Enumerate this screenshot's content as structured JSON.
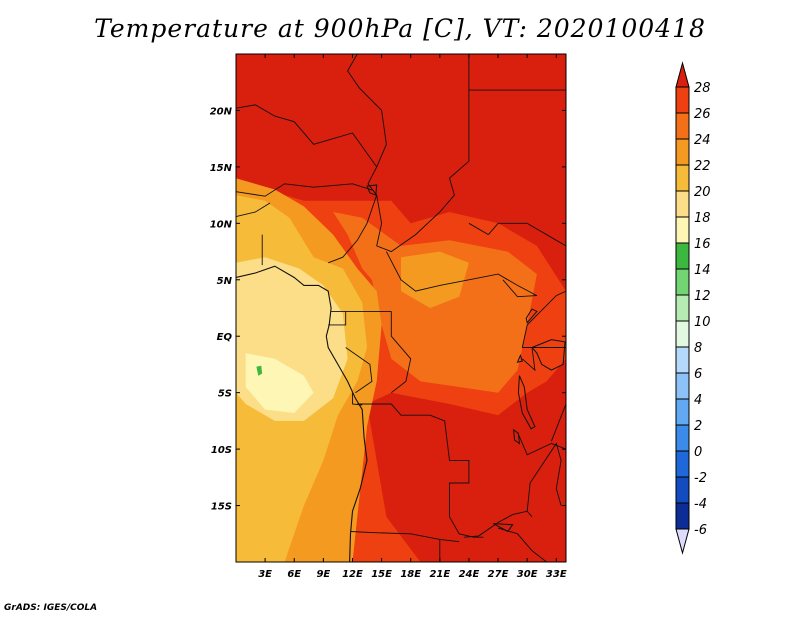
{
  "title": "Temperature at 900hPa [C], VT: 2020100418",
  "credit": "GrADS: IGES/COLA",
  "map": {
    "lon_range": [
      0,
      34
    ],
    "lat_range": [
      -20,
      25
    ],
    "lon_ticks": [
      {
        "value": 3,
        "label": "3E"
      },
      {
        "value": 6,
        "label": "6E"
      },
      {
        "value": 9,
        "label": "9E"
      },
      {
        "value": 12,
        "label": "12E"
      },
      {
        "value": 15,
        "label": "15E"
      },
      {
        "value": 18,
        "label": "18E"
      },
      {
        "value": 21,
        "label": "21E"
      },
      {
        "value": 24,
        "label": "24E"
      },
      {
        "value": 27,
        "label": "27E"
      },
      {
        "value": 30,
        "label": "30E"
      },
      {
        "value": 33,
        "label": "33E"
      }
    ],
    "lat_ticks": [
      {
        "value": 20,
        "label": "20N"
      },
      {
        "value": 15,
        "label": "15N"
      },
      {
        "value": 10,
        "label": "10N"
      },
      {
        "value": 5,
        "label": "5N"
      },
      {
        "value": 0,
        "label": "EQ"
      },
      {
        "value": -5,
        "label": "5S"
      },
      {
        "value": -10,
        "label": "10S"
      },
      {
        "value": -15,
        "label": "15S"
      }
    ]
  },
  "colorbar": {
    "levels": [
      "28",
      "26",
      "24",
      "22",
      "20",
      "18",
      "16",
      "14",
      "12",
      "10",
      "8",
      "6",
      "4",
      "2",
      "0",
      "-2",
      "-4",
      "-6"
    ],
    "colors": [
      "#d91f0d",
      "#ee4010",
      "#f37018",
      "#f59a20",
      "#f7bb3a",
      "#fcde88",
      "#fdf6b4",
      "#3cb840",
      "#73d473",
      "#b6ecb4",
      "#e2f8e0",
      "#b4d9fa",
      "#8cc2f7",
      "#62a8f2",
      "#3b8bea",
      "#1e68d9",
      "#134bc0",
      "#0c2c96",
      "#040f5c",
      "#dedcfa"
    ]
  },
  "fields": {
    "base": "#ee4010",
    "regions": [
      {
        "level": "28+",
        "color": "#d91f0d",
        "points": [
          [
            0,
            25
          ],
          [
            34,
            25
          ],
          [
            34,
            -20
          ],
          [
            19,
            -20
          ],
          [
            15.5,
            -16
          ],
          [
            14.5,
            -11
          ],
          [
            13.5,
            -6
          ],
          [
            16,
            -5
          ],
          [
            22,
            -6
          ],
          [
            27,
            -7
          ],
          [
            30,
            -5
          ],
          [
            32,
            -4
          ],
          [
            34,
            -2
          ],
          [
            34,
            4
          ],
          [
            31,
            8
          ],
          [
            27,
            10
          ],
          [
            22,
            11
          ],
          [
            18,
            10
          ],
          [
            16,
            12
          ],
          [
            11,
            12
          ],
          [
            7,
            12
          ],
          [
            3,
            13
          ],
          [
            0,
            14
          ]
        ]
      },
      {
        "level": "24-26",
        "color": "#f37018",
        "points": [
          [
            10,
            11
          ],
          [
            13,
            10.5
          ],
          [
            17,
            8
          ],
          [
            22,
            8.5
          ],
          [
            28,
            7.5
          ],
          [
            31,
            5.5
          ],
          [
            30,
            1
          ],
          [
            29,
            -3
          ],
          [
            27,
            -5
          ],
          [
            23,
            -4.5
          ],
          [
            19,
            -4
          ],
          [
            16,
            -2
          ],
          [
            15,
            1
          ],
          [
            14,
            5
          ],
          [
            13,
            6
          ],
          [
            11.5,
            9
          ]
        ]
      },
      {
        "level": "22-24",
        "color": "#f59a20",
        "points": [
          [
            0,
            14
          ],
          [
            4,
            13
          ],
          [
            7,
            11.5
          ],
          [
            10,
            9
          ],
          [
            12.5,
            6
          ],
          [
            14.5,
            4
          ],
          [
            15,
            1
          ],
          [
            14.5,
            -4
          ],
          [
            13.5,
            -8
          ],
          [
            13,
            -12
          ],
          [
            12.5,
            -16
          ],
          [
            12,
            -20
          ],
          [
            0,
            -20
          ]
        ]
      },
      {
        "level": "22-24",
        "color": "#f59a20",
        "points": [
          [
            17,
            7
          ],
          [
            21,
            7.5
          ],
          [
            24,
            6.5
          ],
          [
            23,
            3.5
          ],
          [
            20,
            2.5
          ],
          [
            17,
            4
          ]
        ]
      },
      {
        "level": "20-22",
        "color": "#f7bb3a",
        "points": [
          [
            0,
            12.5
          ],
          [
            3,
            12
          ],
          [
            5.5,
            10.5
          ],
          [
            8,
            7
          ],
          [
            11,
            6
          ],
          [
            13,
            3
          ],
          [
            13.5,
            -1
          ],
          [
            12.5,
            -4
          ],
          [
            10.5,
            -7
          ],
          [
            9,
            -11
          ],
          [
            7,
            -15
          ],
          [
            5,
            -20
          ],
          [
            0,
            -20
          ]
        ]
      },
      {
        "level": "18-20",
        "color": "#fcde88",
        "points": [
          [
            0,
            6.5
          ],
          [
            3,
            7
          ],
          [
            6.5,
            6
          ],
          [
            9,
            4.5
          ],
          [
            11,
            2
          ],
          [
            11.5,
            -2
          ],
          [
            10,
            -5.5
          ],
          [
            7,
            -7.5
          ],
          [
            4,
            -7.5
          ],
          [
            1,
            -6
          ],
          [
            0,
            -5
          ]
        ]
      },
      {
        "level": "16-18",
        "color": "#fdf6b4",
        "points": [
          [
            1,
            -1.5
          ],
          [
            4,
            -2
          ],
          [
            7,
            -3.5
          ],
          [
            8,
            -5
          ],
          [
            6,
            -6.8
          ],
          [
            3,
            -6.5
          ],
          [
            1,
            -4.5
          ]
        ]
      },
      {
        "level": "14-16",
        "color": "#3cb840",
        "points": [
          [
            2.1,
            -2.7
          ],
          [
            2.6,
            -2.6
          ],
          [
            2.7,
            -3.3
          ],
          [
            2.3,
            -3.5
          ]
        ]
      }
    ]
  },
  "features": {
    "coastlines": [
      [
        [
          0,
          5.2
        ],
        [
          2,
          5.6
        ],
        [
          4,
          6.2
        ],
        [
          6,
          5.2
        ],
        [
          7,
          4.5
        ],
        [
          8.5,
          4.5
        ],
        [
          9.5,
          4
        ],
        [
          9.8,
          2.5
        ],
        [
          9.6,
          1
        ],
        [
          9.3,
          0
        ],
        [
          9.5,
          -1
        ],
        [
          10.5,
          -2.5
        ],
        [
          11.5,
          -4
        ],
        [
          12.3,
          -5.5
        ],
        [
          13,
          -6.5
        ],
        [
          13.2,
          -9
        ],
        [
          13.5,
          -11
        ],
        [
          12.8,
          -13.5
        ],
        [
          12,
          -15.5
        ],
        [
          11.8,
          -17.5
        ],
        [
          11.7,
          -20
        ]
      ]
    ],
    "borders": [
      [
        [
          12.5,
          25
        ],
        [
          11.5,
          23.5
        ],
        [
          12.7,
          22
        ],
        [
          15,
          20
        ],
        [
          15.5,
          17
        ],
        [
          14.5,
          15
        ],
        [
          13.6,
          13.5
        ],
        [
          14.5,
          12.5
        ],
        [
          15,
          10
        ],
        [
          14.5,
          8
        ],
        [
          16,
          7.5
        ],
        [
          18.5,
          9
        ],
        [
          21,
          11
        ],
        [
          22.5,
          12.5
        ],
        [
          22,
          14
        ],
        [
          24,
          15.5
        ],
        [
          24,
          20
        ],
        [
          24,
          25
        ]
      ],
      [
        [
          0,
          20.2
        ],
        [
          2,
          20.5
        ],
        [
          4,
          19.5
        ],
        [
          6,
          19
        ],
        [
          8,
          17
        ],
        [
          12,
          18
        ],
        [
          14.5,
          15
        ]
      ],
      [
        [
          24,
          21.8
        ],
        [
          34,
          21.8
        ]
      ],
      [
        [
          0,
          12.8
        ],
        [
          3,
          12.4
        ],
        [
          5,
          13.5
        ],
        [
          8,
          13.2
        ],
        [
          12,
          13.5
        ],
        [
          14.2,
          12.9
        ]
      ],
      [
        [
          0,
          10.6
        ],
        [
          2,
          11
        ],
        [
          3.5,
          11.8
        ]
      ],
      [
        [
          2.7,
          9
        ],
        [
          2.7,
          6.3
        ]
      ],
      [
        [
          9.5,
          6.5
        ],
        [
          11,
          7
        ],
        [
          12.5,
          8.5
        ],
        [
          13.5,
          10
        ],
        [
          14.5,
          12.5
        ]
      ],
      [
        [
          15.5,
          7.5
        ],
        [
          17,
          5
        ],
        [
          18.5,
          4
        ],
        [
          21,
          4.5
        ],
        [
          24,
          5
        ],
        [
          27,
          5.5
        ],
        [
          29,
          4.5
        ],
        [
          31,
          3.6
        ]
      ],
      [
        [
          16,
          2.2
        ],
        [
          16,
          0
        ],
        [
          18,
          -2
        ],
        [
          17.5,
          -4
        ],
        [
          16,
          -5
        ]
      ],
      [
        [
          9.8,
          2.2
        ],
        [
          11.3,
          2.2
        ],
        [
          13,
          2.2
        ],
        [
          14.2,
          2.2
        ],
        [
          16,
          2.2
        ]
      ],
      [
        [
          11.3,
          2.2
        ],
        [
          11.3,
          1
        ],
        [
          9.5,
          1
        ]
      ],
      [
        [
          11.3,
          -1
        ],
        [
          13.8,
          -2.5
        ],
        [
          14,
          -4
        ],
        [
          12.3,
          -5
        ]
      ],
      [
        [
          12,
          -5
        ],
        [
          12,
          -6
        ],
        [
          13,
          -6.1
        ]
      ],
      [
        [
          12.5,
          -6
        ],
        [
          16,
          -6
        ],
        [
          17,
          -7
        ],
        [
          20,
          -7
        ],
        [
          21.5,
          -7.5
        ],
        [
          22,
          -11
        ],
        [
          24,
          -11
        ],
        [
          24,
          -13
        ],
        [
          22,
          -13
        ],
        [
          22,
          -16
        ],
        [
          23,
          -17.5
        ],
        [
          24.5,
          -17.8
        ],
        [
          25.5,
          -17.8
        ]
      ],
      [
        [
          11.8,
          -17.3
        ],
        [
          14,
          -17.4
        ],
        [
          18,
          -17.5
        ],
        [
          21,
          -18
        ],
        [
          23,
          -18.2
        ]
      ],
      [
        [
          21,
          -18
        ],
        [
          21,
          -20
        ]
      ],
      [
        [
          23.5,
          -17.8
        ],
        [
          25,
          -17.7
        ],
        [
          27,
          -16.5
        ],
        [
          28.5,
          -15.8
        ],
        [
          30,
          -15.5
        ],
        [
          30.5,
          -16
        ]
      ],
      [
        [
          27,
          -17
        ],
        [
          29,
          -17.5
        ],
        [
          30.5,
          -19
        ],
        [
          32,
          -20
        ]
      ],
      [
        [
          30,
          -15.5
        ],
        [
          30.3,
          -13
        ],
        [
          33,
          -9.5
        ],
        [
          33.5,
          -11
        ],
        [
          33,
          -13.5
        ],
        [
          33.5,
          -15
        ]
      ],
      [
        [
          29,
          -8.5
        ],
        [
          30,
          -10.5
        ],
        [
          32.5,
          -9.5
        ],
        [
          34,
          -10
        ]
      ],
      [
        [
          29.5,
          -2
        ],
        [
          30.8,
          -3
        ],
        [
          30.5,
          -1
        ]
      ],
      [
        [
          29.5,
          -1
        ],
        [
          30,
          1
        ],
        [
          31.5,
          2.3
        ],
        [
          33,
          3.6
        ],
        [
          34,
          4
        ]
      ],
      [
        [
          29.5,
          -1
        ],
        [
          32,
          -1
        ],
        [
          34,
          -1
        ]
      ],
      [
        [
          31,
          3.6
        ],
        [
          29,
          3.5
        ],
        [
          27.5,
          5
        ]
      ],
      [
        [
          26,
          9
        ],
        [
          27,
          10
        ],
        [
          30,
          10
        ],
        [
          31,
          9.5
        ],
        [
          33,
          8.5
        ],
        [
          34,
          8
        ]
      ],
      [
        [
          24,
          10
        ],
        [
          26,
          9
        ]
      ],
      [
        [
          34,
          -6
        ],
        [
          32.5,
          -9.3
        ]
      ]
    ],
    "lakes": [
      [
        [
          30.5,
          -1
        ],
        [
          32.5,
          -0.3
        ],
        [
          33.9,
          -0.5
        ],
        [
          33.7,
          -2.5
        ],
        [
          32.5,
          -3
        ],
        [
          31.5,
          -2.5
        ],
        [
          31,
          -1.5
        ]
      ],
      [
        [
          29.2,
          -3.5
        ],
        [
          29.7,
          -4.5
        ],
        [
          30,
          -6.5
        ],
        [
          30.8,
          -8
        ],
        [
          30.4,
          -8.2
        ],
        [
          29.5,
          -6.8
        ],
        [
          29.1,
          -5
        ]
      ],
      [
        [
          34,
          -9.5
        ],
        [
          34.3,
          -11.5
        ],
        [
          34.5,
          -14
        ],
        [
          34,
          -13
        ]
      ],
      [
        [
          28.6,
          -8.3
        ],
        [
          29.1,
          -8.6
        ],
        [
          29.2,
          -9.5
        ],
        [
          28.7,
          -9.2
        ]
      ],
      [
        [
          26.5,
          -16.6
        ],
        [
          28.5,
          -16.7
        ],
        [
          28,
          -17.3
        ]
      ],
      [
        [
          30,
          1.2
        ],
        [
          31,
          2.2
        ],
        [
          30.5,
          2.4
        ],
        [
          29.9,
          1.6
        ]
      ],
      [
        [
          29.3,
          -1.7
        ],
        [
          29.5,
          -2.2
        ],
        [
          29.0,
          -2.3
        ]
      ],
      [
        [
          13.5,
          13.3
        ],
        [
          14.5,
          13.4
        ],
        [
          14.4,
          12.5
        ],
        [
          13.8,
          12.7
        ]
      ]
    ]
  }
}
